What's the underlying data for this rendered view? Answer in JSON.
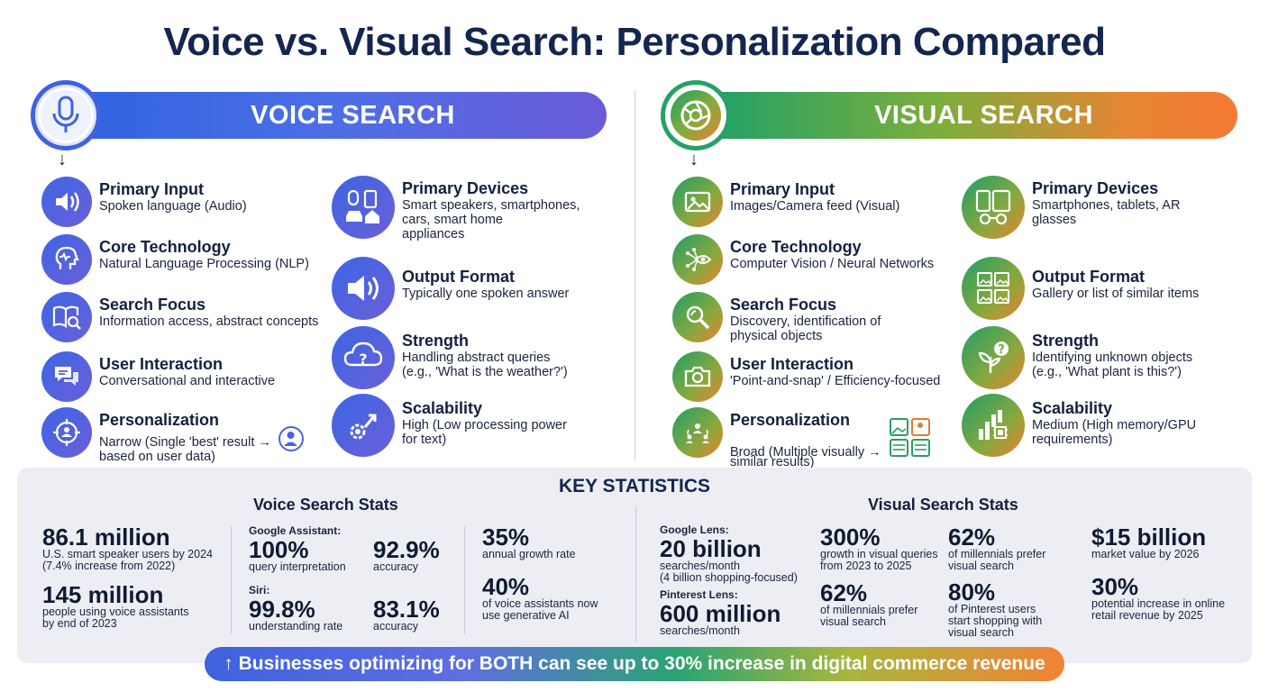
{
  "title": "Voice vs. Visual Search: Personalization Compared",
  "voice": {
    "banner": "VOICE SEARCH",
    "items": [
      {
        "label": "Primary Input",
        "desc": "Spoken language (Audio)"
      },
      {
        "label": "Core Technology",
        "desc": "Natural Language Processing (NLP)"
      },
      {
        "label": "Search Focus",
        "desc": "Information access, abstract concepts"
      },
      {
        "label": "User Interaction",
        "desc": "Conversational and interactive"
      },
      {
        "label": "Personalization",
        "desc": "Narrow (Single 'best' result →",
        "desc2": "based on user data)"
      }
    ],
    "items_right": [
      {
        "label": "Primary Devices",
        "desc": "Smart speakers, smartphones,",
        "desc2": "cars, smart home",
        "desc3": "appliances"
      },
      {
        "label": "Output Format",
        "desc": "Typically one spoken answer"
      },
      {
        "label": "Strength",
        "desc": "Handling abstract queries",
        "desc2": "(e.g., 'What is the weather?')"
      },
      {
        "label": "Scalability",
        "desc": "High (Low processing power",
        "desc2": "for text)"
      }
    ]
  },
  "visual": {
    "banner": "VISUAL SEARCH",
    "items": [
      {
        "label": "Primary Input",
        "desc": "Images/Camera feed (Visual)"
      },
      {
        "label": "Core Technology",
        "desc": "Computer Vision / Neural Networks"
      },
      {
        "label": "Search Focus",
        "desc": "Discovery, identification of",
        "desc2": "physical objects"
      },
      {
        "label": "User Interaction",
        "desc": "'Point-and-snap' / Efficiency-focused"
      },
      {
        "label": "Personalization",
        "desc": "Broad (Multiple visually →",
        "desc2": "similar results)"
      }
    ],
    "items_right": [
      {
        "label": "Primary Devices",
        "desc": "Smartphones, tablets, AR",
        "desc2": "glasses"
      },
      {
        "label": "Output Format",
        "desc": "Gallery or list of similar items"
      },
      {
        "label": "Strength",
        "desc": "Identifying unknown objects",
        "desc2": "(e.g., 'What plant is this?')"
      },
      {
        "label": "Scalability",
        "desc": "Medium (High memory/GPU",
        "desc2": "requirements)"
      }
    ]
  },
  "stats": {
    "title": "KEY STATISTICS",
    "voice_title": "Voice Search Stats",
    "visual_title": "Visual Search Stats",
    "voice": {
      "s1": {
        "value": "86.1 million",
        "d1": "U.S. smart speaker users by 2024",
        "d2": "(7.4% increase from 2022)"
      },
      "s2": {
        "value": "145 million",
        "d1": "people using voice assistants",
        "d2": "by end of 2023"
      },
      "ga_label": "Google Assistant:",
      "ga1": {
        "value": "100%",
        "d1": "query interpretation"
      },
      "ga2": {
        "value": "92.9%",
        "d1": "accuracy"
      },
      "siri_label": "Siri:",
      "siri1": {
        "value": "99.8%",
        "d1": "understanding rate"
      },
      "siri2": {
        "value": "83.1%",
        "d1": "accuracy"
      },
      "g1": {
        "value": "35%",
        "d1": "annual growth rate"
      },
      "g2": {
        "value": "40%",
        "d1": "of voice assistants now",
        "d2": "use generative AI"
      }
    },
    "visual": {
      "gl_label": "Google Lens:",
      "gl": {
        "value": "20 billion",
        "d1": "searches/month",
        "d2": "(4 billion shopping-focused)"
      },
      "pl_label": "Pinterest Lens:",
      "pl": {
        "value": "600 million",
        "d1": "searches/month"
      },
      "a1": {
        "value": "300%",
        "d1": "growth in visual queries",
        "d2": "from 2023 to 2025"
      },
      "a2": {
        "value": "62%",
        "d1": "of millennials prefer",
        "d2": "visual search"
      },
      "b1": {
        "value": "62%",
        "d1": "of millennials prefer",
        "d2": "visual search"
      },
      "b2": {
        "value": "80%",
        "d1": "of Pinterest users",
        "d2": "start shopping with",
        "d3": "visual search"
      },
      "c1": {
        "value": "$15 billion",
        "d1": "market value by 2026"
      },
      "c2": {
        "value": "30%",
        "d1": "potential increase in online",
        "d2": "retail revenue by 2025"
      }
    }
  },
  "bottom": "↑ Businesses optimizing for BOTH can see up to 30% increase in digital commerce revenue",
  "colors": {
    "voice": "#3f63df",
    "visual_start": "#1aa06a",
    "visual_end": "#f47a32",
    "navy": "#13264f"
  }
}
